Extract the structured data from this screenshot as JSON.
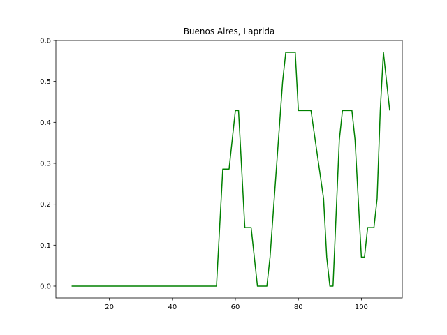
{
  "chart_data": {
    "type": "line",
    "title": "Buenos Aires, Laprida",
    "xlabel": "",
    "ylabel": "",
    "xlim": [
      3,
      113
    ],
    "ylim": [
      -0.029,
      0.6
    ],
    "xticks": [
      20,
      40,
      60,
      80,
      100
    ],
    "yticks": [
      0.0,
      0.1,
      0.2,
      0.3,
      0.4,
      0.5,
      0.6
    ],
    "ytick_labels": [
      "0.0",
      "0.1",
      "0.2",
      "0.3",
      "0.4",
      "0.5",
      "0.6"
    ],
    "grid": false,
    "series": [
      {
        "color": "#008000",
        "x": [
          8,
          54,
          56,
          58,
          60,
          61,
          63,
          65,
          67,
          70,
          71,
          75,
          76,
          79,
          80,
          84,
          88,
          89,
          90,
          91,
          93,
          94,
          97,
          98,
          100,
          101,
          102,
          104,
          105,
          106,
          107,
          109
        ],
        "y": [
          0.0,
          0.0,
          0.286,
          0.286,
          0.429,
          0.429,
          0.143,
          0.143,
          0.0,
          0.0,
          0.071,
          0.5,
          0.571,
          0.571,
          0.429,
          0.429,
          0.214,
          0.071,
          0.0,
          0.0,
          0.357,
          0.429,
          0.429,
          0.357,
          0.071,
          0.071,
          0.143,
          0.143,
          0.214,
          0.429,
          0.571,
          0.429
        ]
      }
    ]
  }
}
